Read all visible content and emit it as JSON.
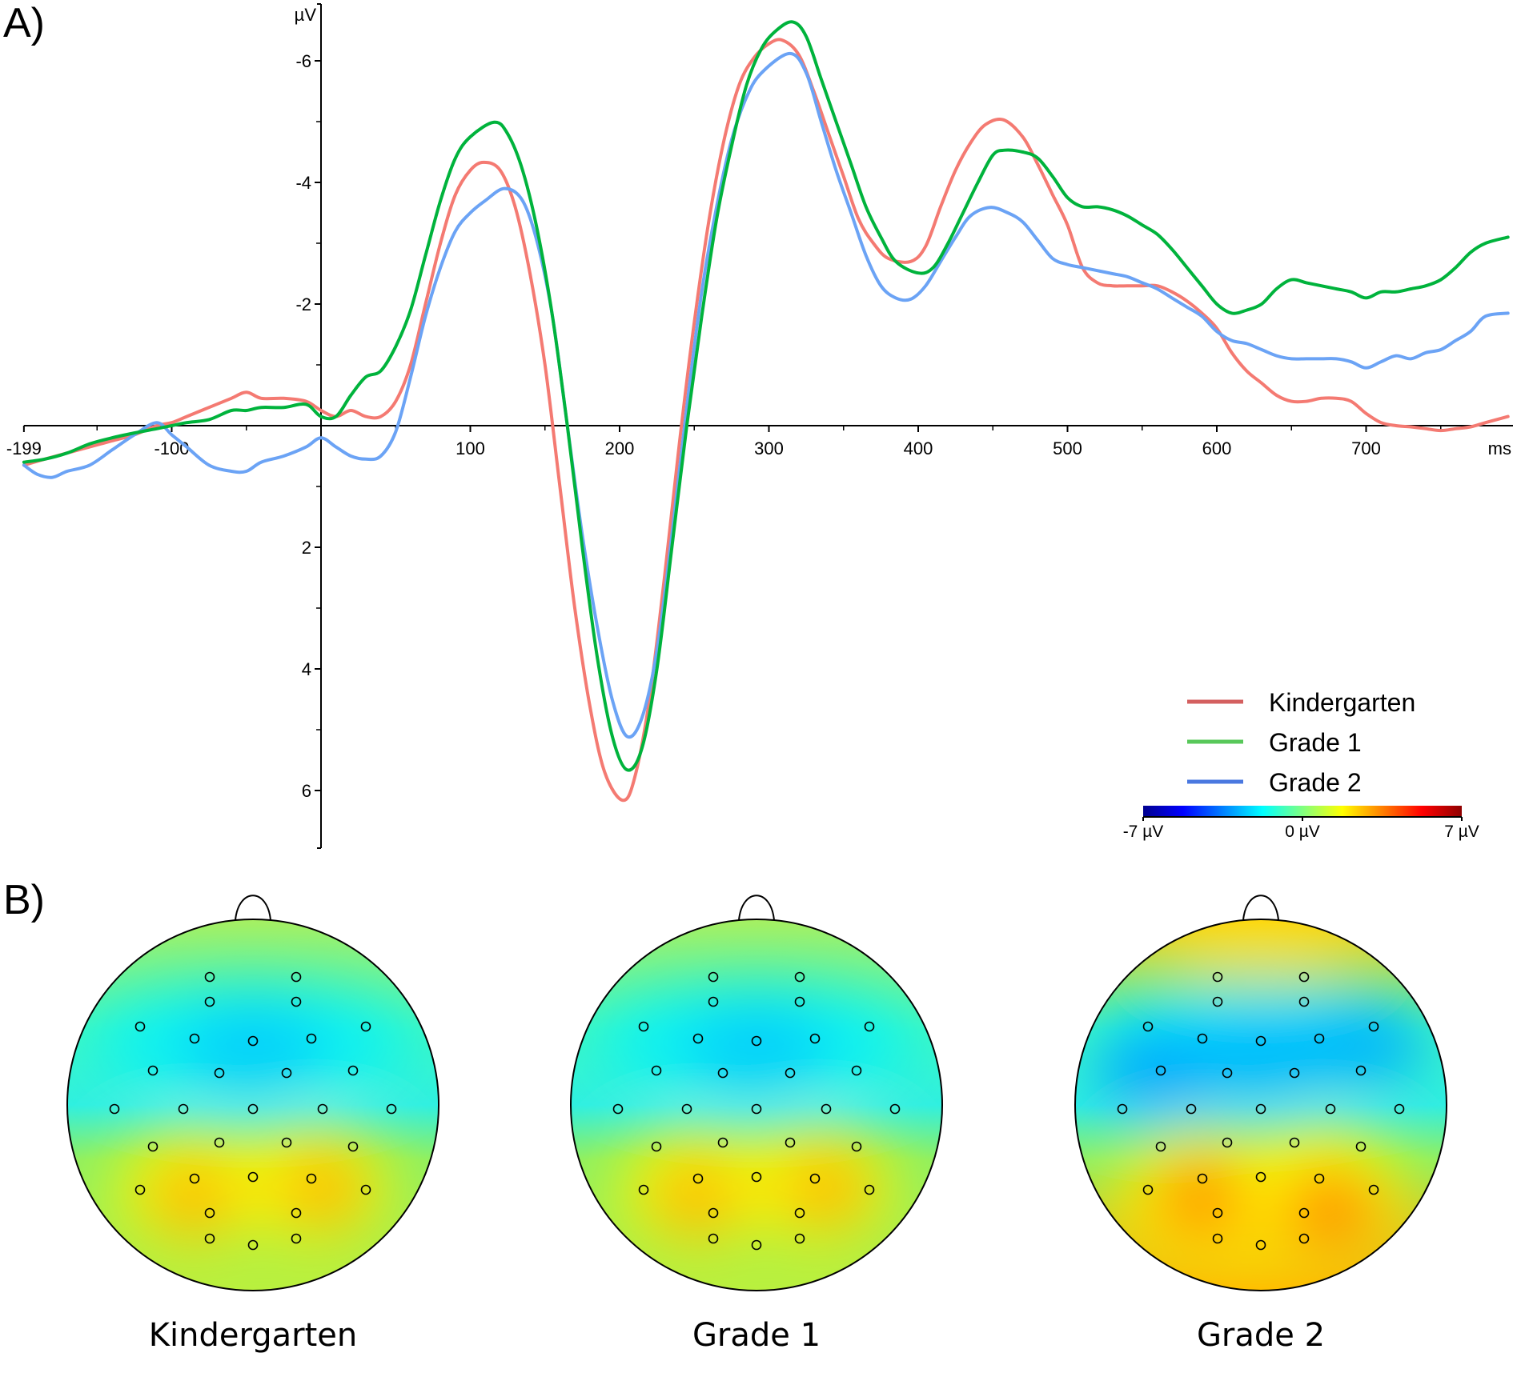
{
  "panels": {
    "a_label": "A)",
    "b_label": "B)"
  },
  "chart_data": {
    "type": "line",
    "title": "",
    "xlabel": "ms",
    "ylabel": "µV",
    "xlim": [
      -199,
      795
    ],
    "ylim": [
      7,
      -7
    ],
    "y_inverted": true,
    "x_ticks": [
      -199,
      -100,
      100,
      200,
      300,
      400,
      500,
      600,
      700
    ],
    "x_tick_labels": [
      "-199",
      "-100",
      "100",
      "200",
      "300",
      "400",
      "500",
      "600",
      "700"
    ],
    "x_minor_ticks": [
      -150,
      -50,
      0,
      50,
      150,
      250,
      350,
      450,
      550,
      650,
      750
    ],
    "y_ticks": [
      -6,
      -4,
      -2,
      2,
      4,
      6
    ],
    "y_tick_labels": [
      "-6",
      "-4",
      "-2",
      "2",
      "4",
      "6"
    ],
    "y_minor_ticks": [
      -5,
      -3,
      -1,
      1,
      3,
      5
    ],
    "legend_position": "bottom-right",
    "series": [
      {
        "name": "Kindergarten",
        "color": "#f47a72",
        "legend_color": "#d46060",
        "x": [
          -199,
          -185,
          -170,
          -155,
          -140,
          -125,
          -110,
          -100,
          -90,
          -75,
          -60,
          -50,
          -40,
          -25,
          -10,
          0,
          10,
          20,
          30,
          40,
          50,
          60,
          70,
          80,
          90,
          100,
          109,
          120,
          130,
          140,
          150,
          160,
          170,
          180,
          190,
          202,
          210,
          220,
          230,
          240,
          250,
          260,
          270,
          280,
          290,
          300,
          309,
          320,
          330,
          340,
          350,
          360,
          370,
          380,
          395,
          405,
          415,
          425,
          435,
          445,
          457,
          470,
          480,
          490,
          500,
          510,
          520,
          530,
          540,
          550,
          560,
          570,
          580,
          590,
          600,
          610,
          620,
          630,
          640,
          650,
          660,
          670,
          680,
          690,
          700,
          710,
          720,
          730,
          740,
          750,
          760,
          770,
          780,
          795
        ],
        "y": [
          0.65,
          0.55,
          0.45,
          0.35,
          0.25,
          0.15,
          0.0,
          -0.05,
          -0.15,
          -0.3,
          -0.45,
          -0.55,
          -0.45,
          -0.45,
          -0.4,
          -0.25,
          -0.15,
          -0.25,
          -0.15,
          -0.15,
          -0.4,
          -1.0,
          -2.0,
          -3.0,
          -3.8,
          -4.2,
          -4.33,
          -4.2,
          -3.6,
          -2.5,
          -1.0,
          1.0,
          3.0,
          4.6,
          5.7,
          6.16,
          5.8,
          4.5,
          2.5,
          0.3,
          -1.7,
          -3.4,
          -4.7,
          -5.6,
          -6.05,
          -6.28,
          -6.34,
          -6.1,
          -5.5,
          -4.8,
          -4.1,
          -3.4,
          -3.0,
          -2.75,
          -2.7,
          -2.95,
          -3.6,
          -4.2,
          -4.65,
          -4.95,
          -5.03,
          -4.75,
          -4.3,
          -3.8,
          -3.3,
          -2.6,
          -2.35,
          -2.3,
          -2.3,
          -2.3,
          -2.3,
          -2.2,
          -2.05,
          -1.85,
          -1.6,
          -1.2,
          -0.9,
          -0.7,
          -0.5,
          -0.4,
          -0.4,
          -0.45,
          -0.45,
          -0.4,
          -0.2,
          -0.05,
          0.0,
          0.02,
          0.05,
          0.08,
          0.05,
          0.02,
          -0.05,
          -0.15
        ]
      },
      {
        "name": "Grade 1",
        "color": "#00b33c",
        "legend_color": "#58c85a",
        "x": [
          -199,
          -185,
          -170,
          -155,
          -140,
          -125,
          -110,
          -100,
          -90,
          -75,
          -60,
          -50,
          -40,
          -25,
          -10,
          0,
          10,
          20,
          30,
          40,
          50,
          60,
          70,
          80,
          90,
          100,
          116,
          125,
          135,
          145,
          155,
          165,
          175,
          185,
          195,
          205,
          215,
          225,
          235,
          245,
          255,
          265,
          275,
          285,
          295,
          305,
          316,
          325,
          335,
          345,
          355,
          365,
          375,
          385,
          400,
          410,
          420,
          430,
          440,
          450,
          458,
          470,
          480,
          490,
          500,
          510,
          520,
          530,
          540,
          550,
          560,
          570,
          580,
          590,
          600,
          610,
          620,
          630,
          640,
          650,
          660,
          670,
          680,
          690,
          700,
          710,
          720,
          730,
          740,
          750,
          760,
          770,
          780,
          795
        ],
        "y": [
          0.6,
          0.55,
          0.45,
          0.3,
          0.2,
          0.12,
          0.05,
          0.0,
          -0.05,
          -0.1,
          -0.25,
          -0.25,
          -0.3,
          -0.3,
          -0.35,
          -0.15,
          -0.15,
          -0.5,
          -0.8,
          -0.9,
          -1.3,
          -1.9,
          -2.8,
          -3.7,
          -4.4,
          -4.75,
          -4.99,
          -4.8,
          -4.2,
          -3.2,
          -1.8,
          0.0,
          2.0,
          3.8,
          5.1,
          5.66,
          5.3,
          4.0,
          2.0,
          0.0,
          -1.8,
          -3.4,
          -4.6,
          -5.6,
          -6.2,
          -6.5,
          -6.64,
          -6.4,
          -5.7,
          -5.0,
          -4.3,
          -3.6,
          -3.1,
          -2.7,
          -2.51,
          -2.6,
          -3.0,
          -3.5,
          -4.0,
          -4.45,
          -4.53,
          -4.5,
          -4.4,
          -4.1,
          -3.75,
          -3.6,
          -3.6,
          -3.55,
          -3.45,
          -3.3,
          -3.15,
          -2.9,
          -2.6,
          -2.3,
          -2.0,
          -1.85,
          -1.9,
          -2.0,
          -2.25,
          -2.4,
          -2.35,
          -2.3,
          -2.25,
          -2.2,
          -2.1,
          -2.2,
          -2.2,
          -2.25,
          -2.3,
          -2.4,
          -2.6,
          -2.85,
          -3.0,
          -3.1
        ]
      },
      {
        "name": "Grade 2",
        "color": "#6ba3f5",
        "legend_color": "#4a78e0",
        "x": [
          -199,
          -190,
          -180,
          -170,
          -155,
          -140,
          -125,
          -110,
          -100,
          -90,
          -75,
          -60,
          -50,
          -40,
          -25,
          -10,
          0,
          10,
          20,
          30,
          40,
          50,
          60,
          70,
          80,
          90,
          100,
          110,
          123,
          135,
          145,
          155,
          165,
          175,
          185,
          195,
          205,
          215,
          225,
          235,
          245,
          255,
          265,
          275,
          285,
          295,
          314,
          325,
          335,
          345,
          355,
          365,
          375,
          385,
          395,
          405,
          415,
          425,
          435,
          448,
          460,
          470,
          480,
          490,
          500,
          510,
          520,
          530,
          540,
          550,
          560,
          570,
          580,
          590,
          600,
          610,
          620,
          630,
          640,
          650,
          660,
          670,
          680,
          690,
          700,
          710,
          720,
          730,
          740,
          750,
          760,
          770,
          780,
          795
        ],
        "y": [
          0.65,
          0.8,
          0.85,
          0.75,
          0.65,
          0.4,
          0.15,
          -0.05,
          0.15,
          0.35,
          0.65,
          0.75,
          0.75,
          0.6,
          0.5,
          0.35,
          0.2,
          0.35,
          0.5,
          0.55,
          0.5,
          0.1,
          -0.8,
          -1.8,
          -2.6,
          -3.2,
          -3.5,
          -3.7,
          -3.9,
          -3.7,
          -3.0,
          -1.8,
          0.0,
          1.8,
          3.3,
          4.5,
          5.11,
          4.8,
          3.7,
          1.8,
          -0.3,
          -2.2,
          -3.6,
          -4.7,
          -5.4,
          -5.8,
          -6.12,
          -5.8,
          -5.0,
          -4.2,
          -3.5,
          -2.8,
          -2.3,
          -2.1,
          -2.08,
          -2.3,
          -2.7,
          -3.1,
          -3.45,
          -3.59,
          -3.5,
          -3.35,
          -3.05,
          -2.75,
          -2.65,
          -2.6,
          -2.55,
          -2.5,
          -2.45,
          -2.35,
          -2.25,
          -2.1,
          -1.95,
          -1.8,
          -1.55,
          -1.4,
          -1.35,
          -1.25,
          -1.15,
          -1.1,
          -1.1,
          -1.1,
          -1.1,
          -1.05,
          -0.95,
          -1.05,
          -1.15,
          -1.1,
          -1.2,
          -1.25,
          -1.4,
          -1.55,
          -1.8,
          -1.85
        ]
      }
    ],
    "colorbar": {
      "min_label": "-7 µV",
      "mid_label": "0 µV",
      "max_label": "7 µV",
      "range": [
        -7,
        7
      ],
      "colors": [
        "#00008f",
        "#0000ff",
        "#0080ff",
        "#00ffff",
        "#80ff80",
        "#ffff00",
        "#ff8000",
        "#ff0000",
        "#8f0000"
      ]
    }
  },
  "topomaps": [
    {
      "label": "Kindergarten",
      "front": "#a8f060",
      "blue_strength": 0.75,
      "orange_strength": 0.8,
      "orange_color": "#ffa000",
      "bottom": "#b8f040"
    },
    {
      "label": "Grade 1",
      "front": "#a8f060",
      "blue_strength": 0.75,
      "orange_strength": 0.8,
      "orange_color": "#ffa000",
      "bottom": "#b8f040"
    },
    {
      "label": "Grade 2",
      "front": "#ffd000",
      "blue_strength": 1.0,
      "orange_strength": 1.0,
      "orange_color": "#ff8000",
      "bottom": "#ffb000"
    }
  ]
}
